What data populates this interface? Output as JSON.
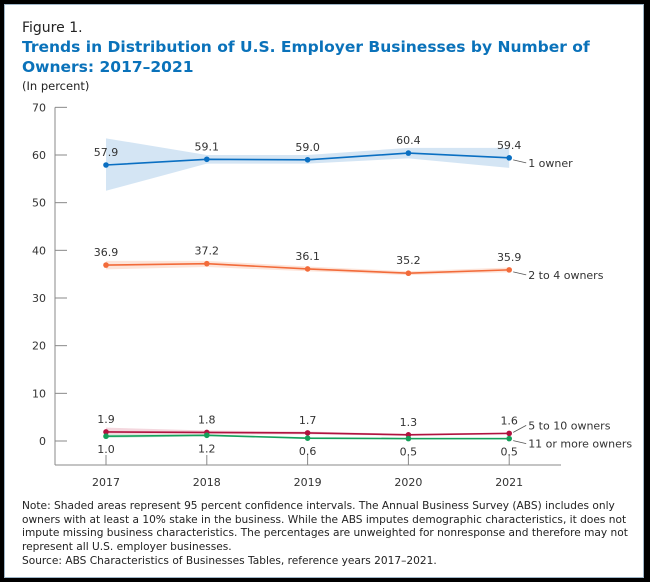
{
  "figure_label": "Figure 1.",
  "note": "Note: Shaded areas represent 95 percent confidence intervals. The Annual Business Survey (ABS) includes only owners with at least a 10% stake in the business. While the ABS imputes demographic characteristics, it does not impute missing business characteristics. The percentages are unweighted for nonresponse and therefore may not represent all U.S. employer businesses.",
  "source": "Source: ABS Characteristics of Businesses Tables, reference years 2017–2021.",
  "chart_data": {
    "type": "line",
    "title": "Trends in Distribution of U.S. Employer Businesses by Number of Owners: 2017–2021",
    "subtitle": "(In percent)",
    "xlabel": "",
    "ylabel": "",
    "categories": [
      "2017",
      "2018",
      "2019",
      "2020",
      "2021"
    ],
    "ylim": [
      -5,
      70
    ],
    "yticks": [
      0,
      10,
      20,
      30,
      40,
      50,
      60,
      70
    ],
    "grid": false,
    "legend": "direct labels at right end of lines",
    "series": [
      {
        "name": "1 owner",
        "color": "#0a6fc2",
        "band_color": "#cfe2f3",
        "values": [
          57.9,
          59.1,
          59.0,
          60.4,
          59.4
        ],
        "ci_low": [
          52.5,
          58.2,
          58.2,
          59.3,
          57.3
        ],
        "ci_high": [
          63.5,
          60.0,
          60.0,
          61.5,
          61.5
        ],
        "labels_below": false
      },
      {
        "name": "2 to 4 owners",
        "color": "#f26b3a",
        "band_color": "#fde1d5",
        "values": [
          36.9,
          37.2,
          36.1,
          35.2,
          35.9
        ],
        "ci_low": [
          36.0,
          36.5,
          35.6,
          34.8,
          35.4
        ],
        "ci_high": [
          37.8,
          37.8,
          36.6,
          35.6,
          36.4
        ],
        "labels_below": false
      },
      {
        "name": "5 to 10 owners",
        "color": "#b0123f",
        "band_color": "#f3d3da",
        "values": [
          1.9,
          1.8,
          1.7,
          1.3,
          1.6
        ],
        "ci_low": [
          1.2,
          1.4,
          1.4,
          1.1,
          1.4
        ],
        "ci_high": [
          2.8,
          2.2,
          2.0,
          1.5,
          1.8
        ],
        "labels_below": false
      },
      {
        "name": "11 or more owners",
        "color": "#14a05a",
        "band_color": "#d3eedf",
        "values": [
          1.0,
          1.2,
          0.6,
          0.5,
          0.5
        ],
        "ci_low": [
          0.6,
          1.0,
          0.4,
          0.3,
          0.3
        ],
        "ci_high": [
          1.4,
          1.4,
          0.8,
          0.7,
          0.7
        ],
        "labels_below": true
      }
    ]
  }
}
